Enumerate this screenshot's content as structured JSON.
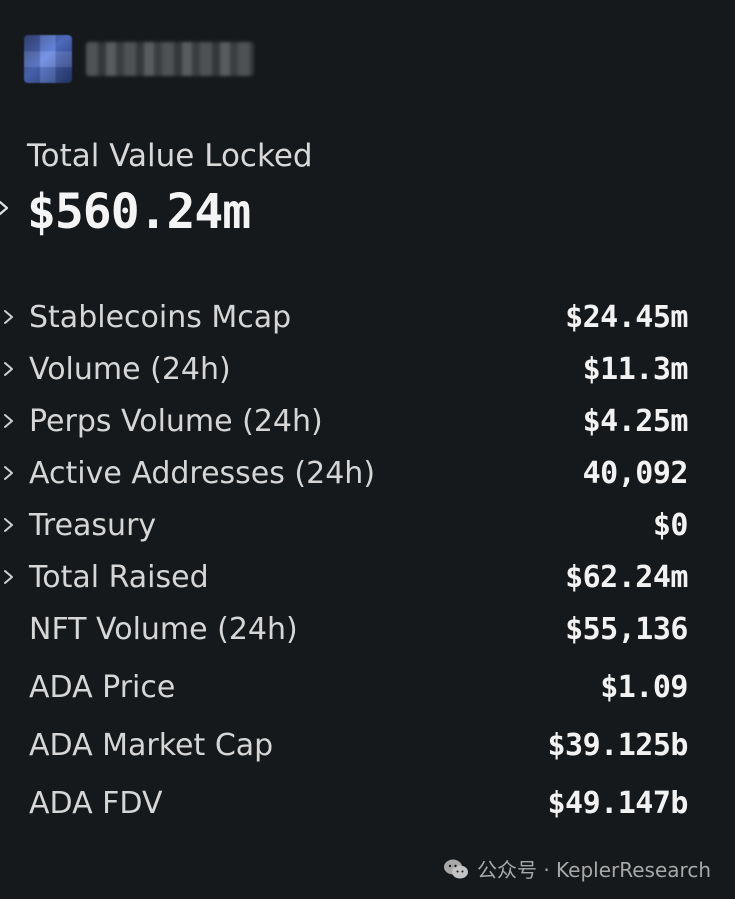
{
  "header": {
    "avatar_icon": "blurred-avatar",
    "name_blurred": true
  },
  "tvl": {
    "label": "Total Value Locked",
    "value": "$560.24m"
  },
  "metrics": [
    {
      "label": "Stablecoins Mcap",
      "value": "$24.45m",
      "expandable": true
    },
    {
      "label": "Volume (24h)",
      "value": "$11.3m",
      "expandable": true
    },
    {
      "label": "Perps Volume (24h)",
      "value": "$4.25m",
      "expandable": true
    },
    {
      "label": "Active Addresses (24h)",
      "value": "40,092",
      "expandable": true
    },
    {
      "label": "Treasury",
      "value": "$0",
      "expandable": true
    },
    {
      "label": "Total Raised",
      "value": "$62.24m",
      "expandable": true
    },
    {
      "label": "NFT Volume (24h)",
      "value": "$55,136",
      "expandable": false
    },
    {
      "label": "ADA Price",
      "value": "$1.09",
      "expandable": false
    },
    {
      "label": "ADA Market Cap",
      "value": "$39.125b",
      "expandable": false
    },
    {
      "label": "ADA FDV",
      "value": "$49.147b",
      "expandable": false
    }
  ],
  "watermark": {
    "text": "公众号 · KeplerResearch",
    "icon": "wechat-icon"
  },
  "colors": {
    "background": "#16191b",
    "label": "#d6d6d6",
    "value": "#f2f2f2"
  }
}
